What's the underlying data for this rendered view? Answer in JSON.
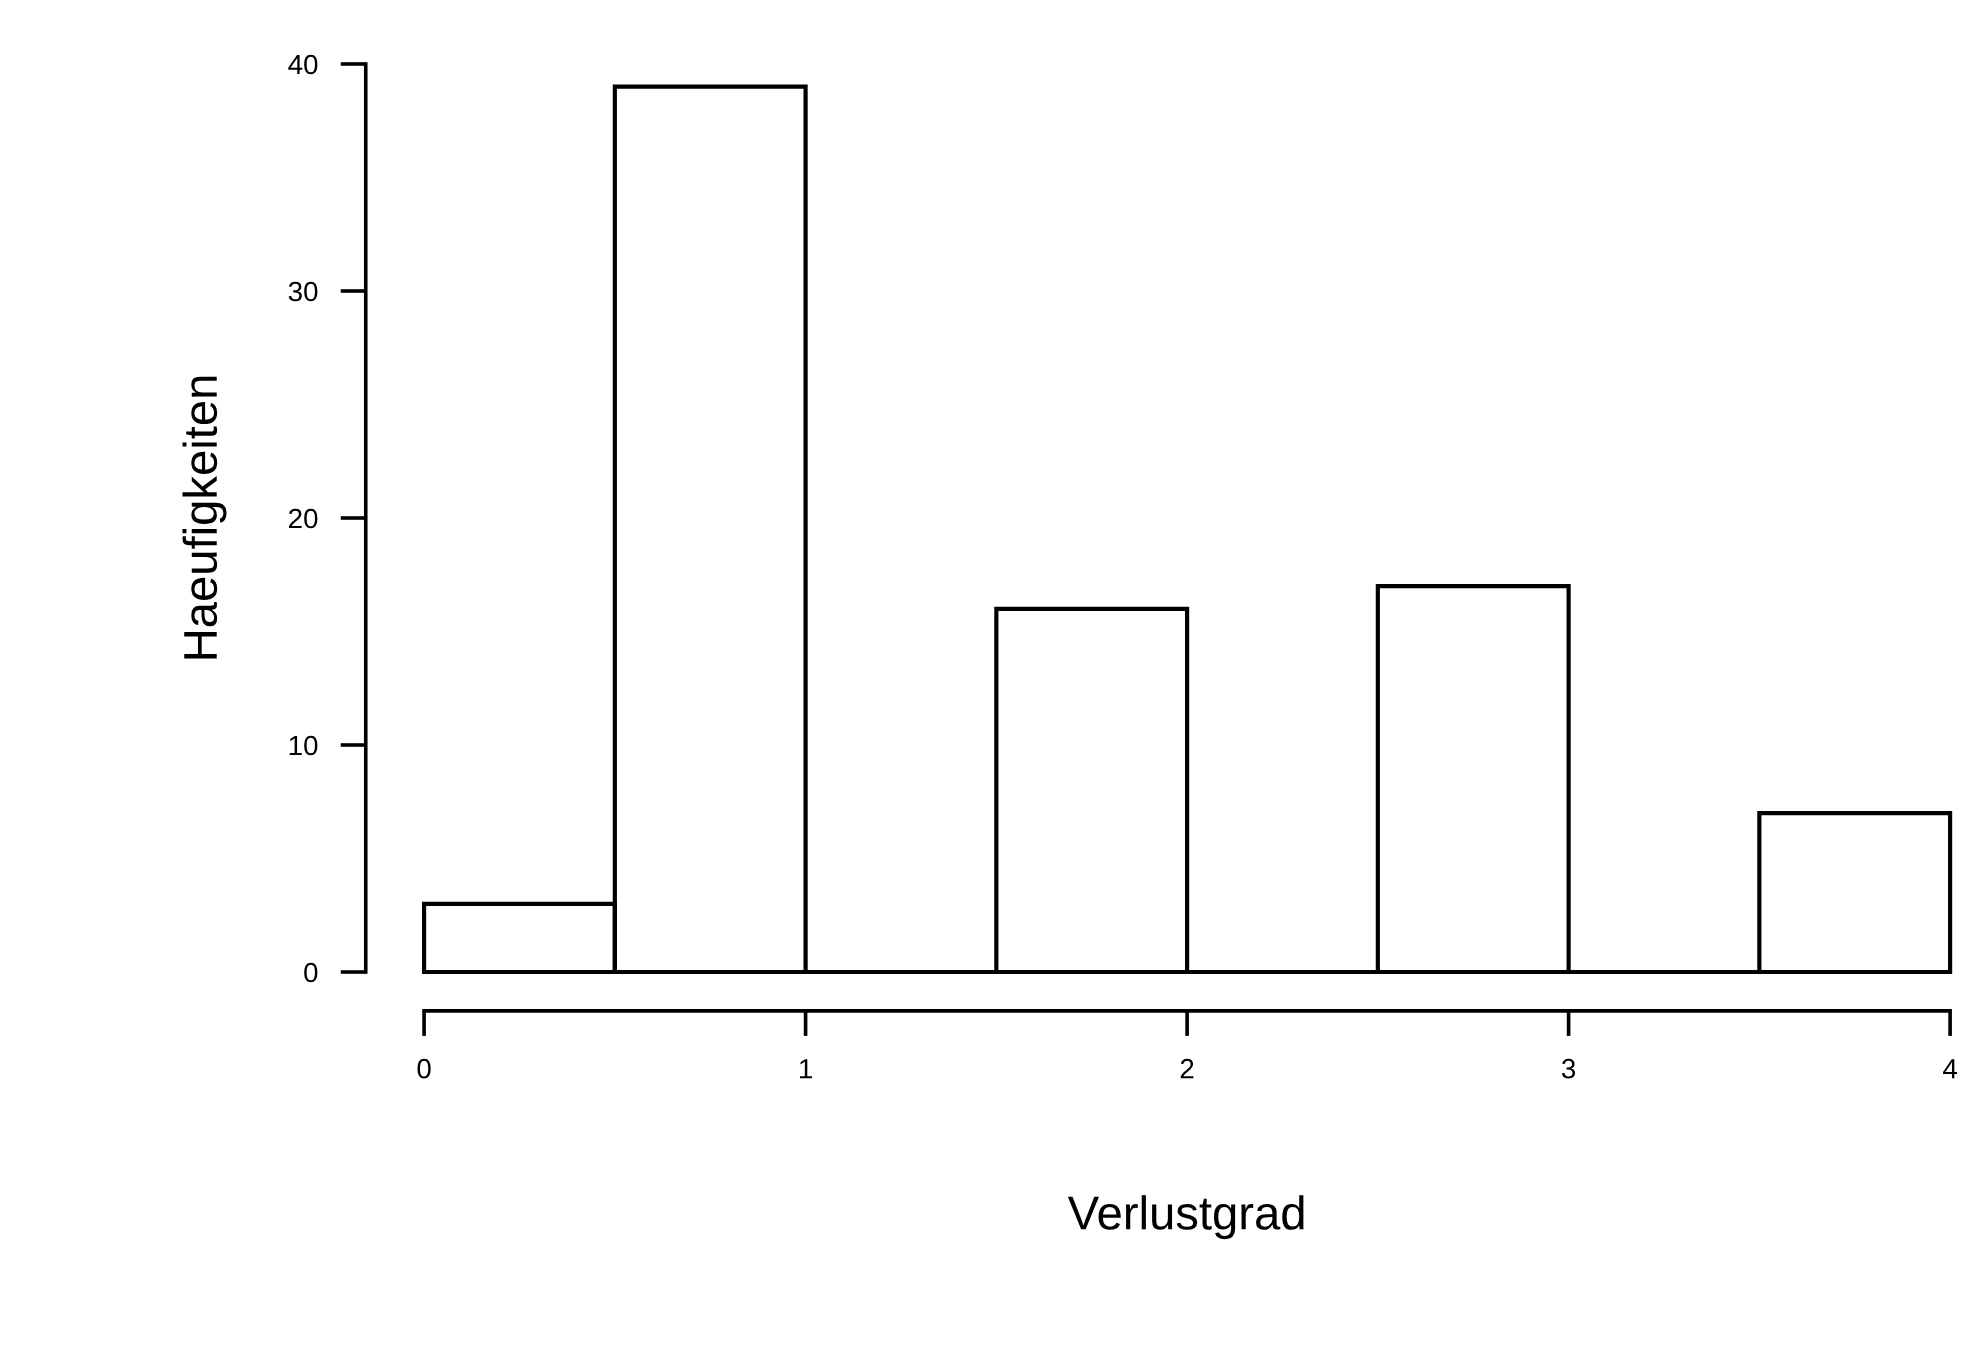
{
  "chart_data": {
    "type": "histogram",
    "xlabel": "Verlustgrad",
    "ylabel": "Haeufigkeiten",
    "bins": [
      0,
      0.5,
      1,
      1.5,
      2,
      2.5,
      3,
      3.5,
      4
    ],
    "values": [
      3,
      39,
      0,
      16,
      0,
      17,
      0,
      7
    ],
    "color": "#000000",
    "xlim": [
      0,
      4
    ],
    "ylim": [
      0,
      40
    ],
    "xticks": [
      0,
      1,
      2,
      3,
      4
    ],
    "yticks": [
      0,
      10,
      20,
      30,
      40
    ],
    "grid": false
  }
}
